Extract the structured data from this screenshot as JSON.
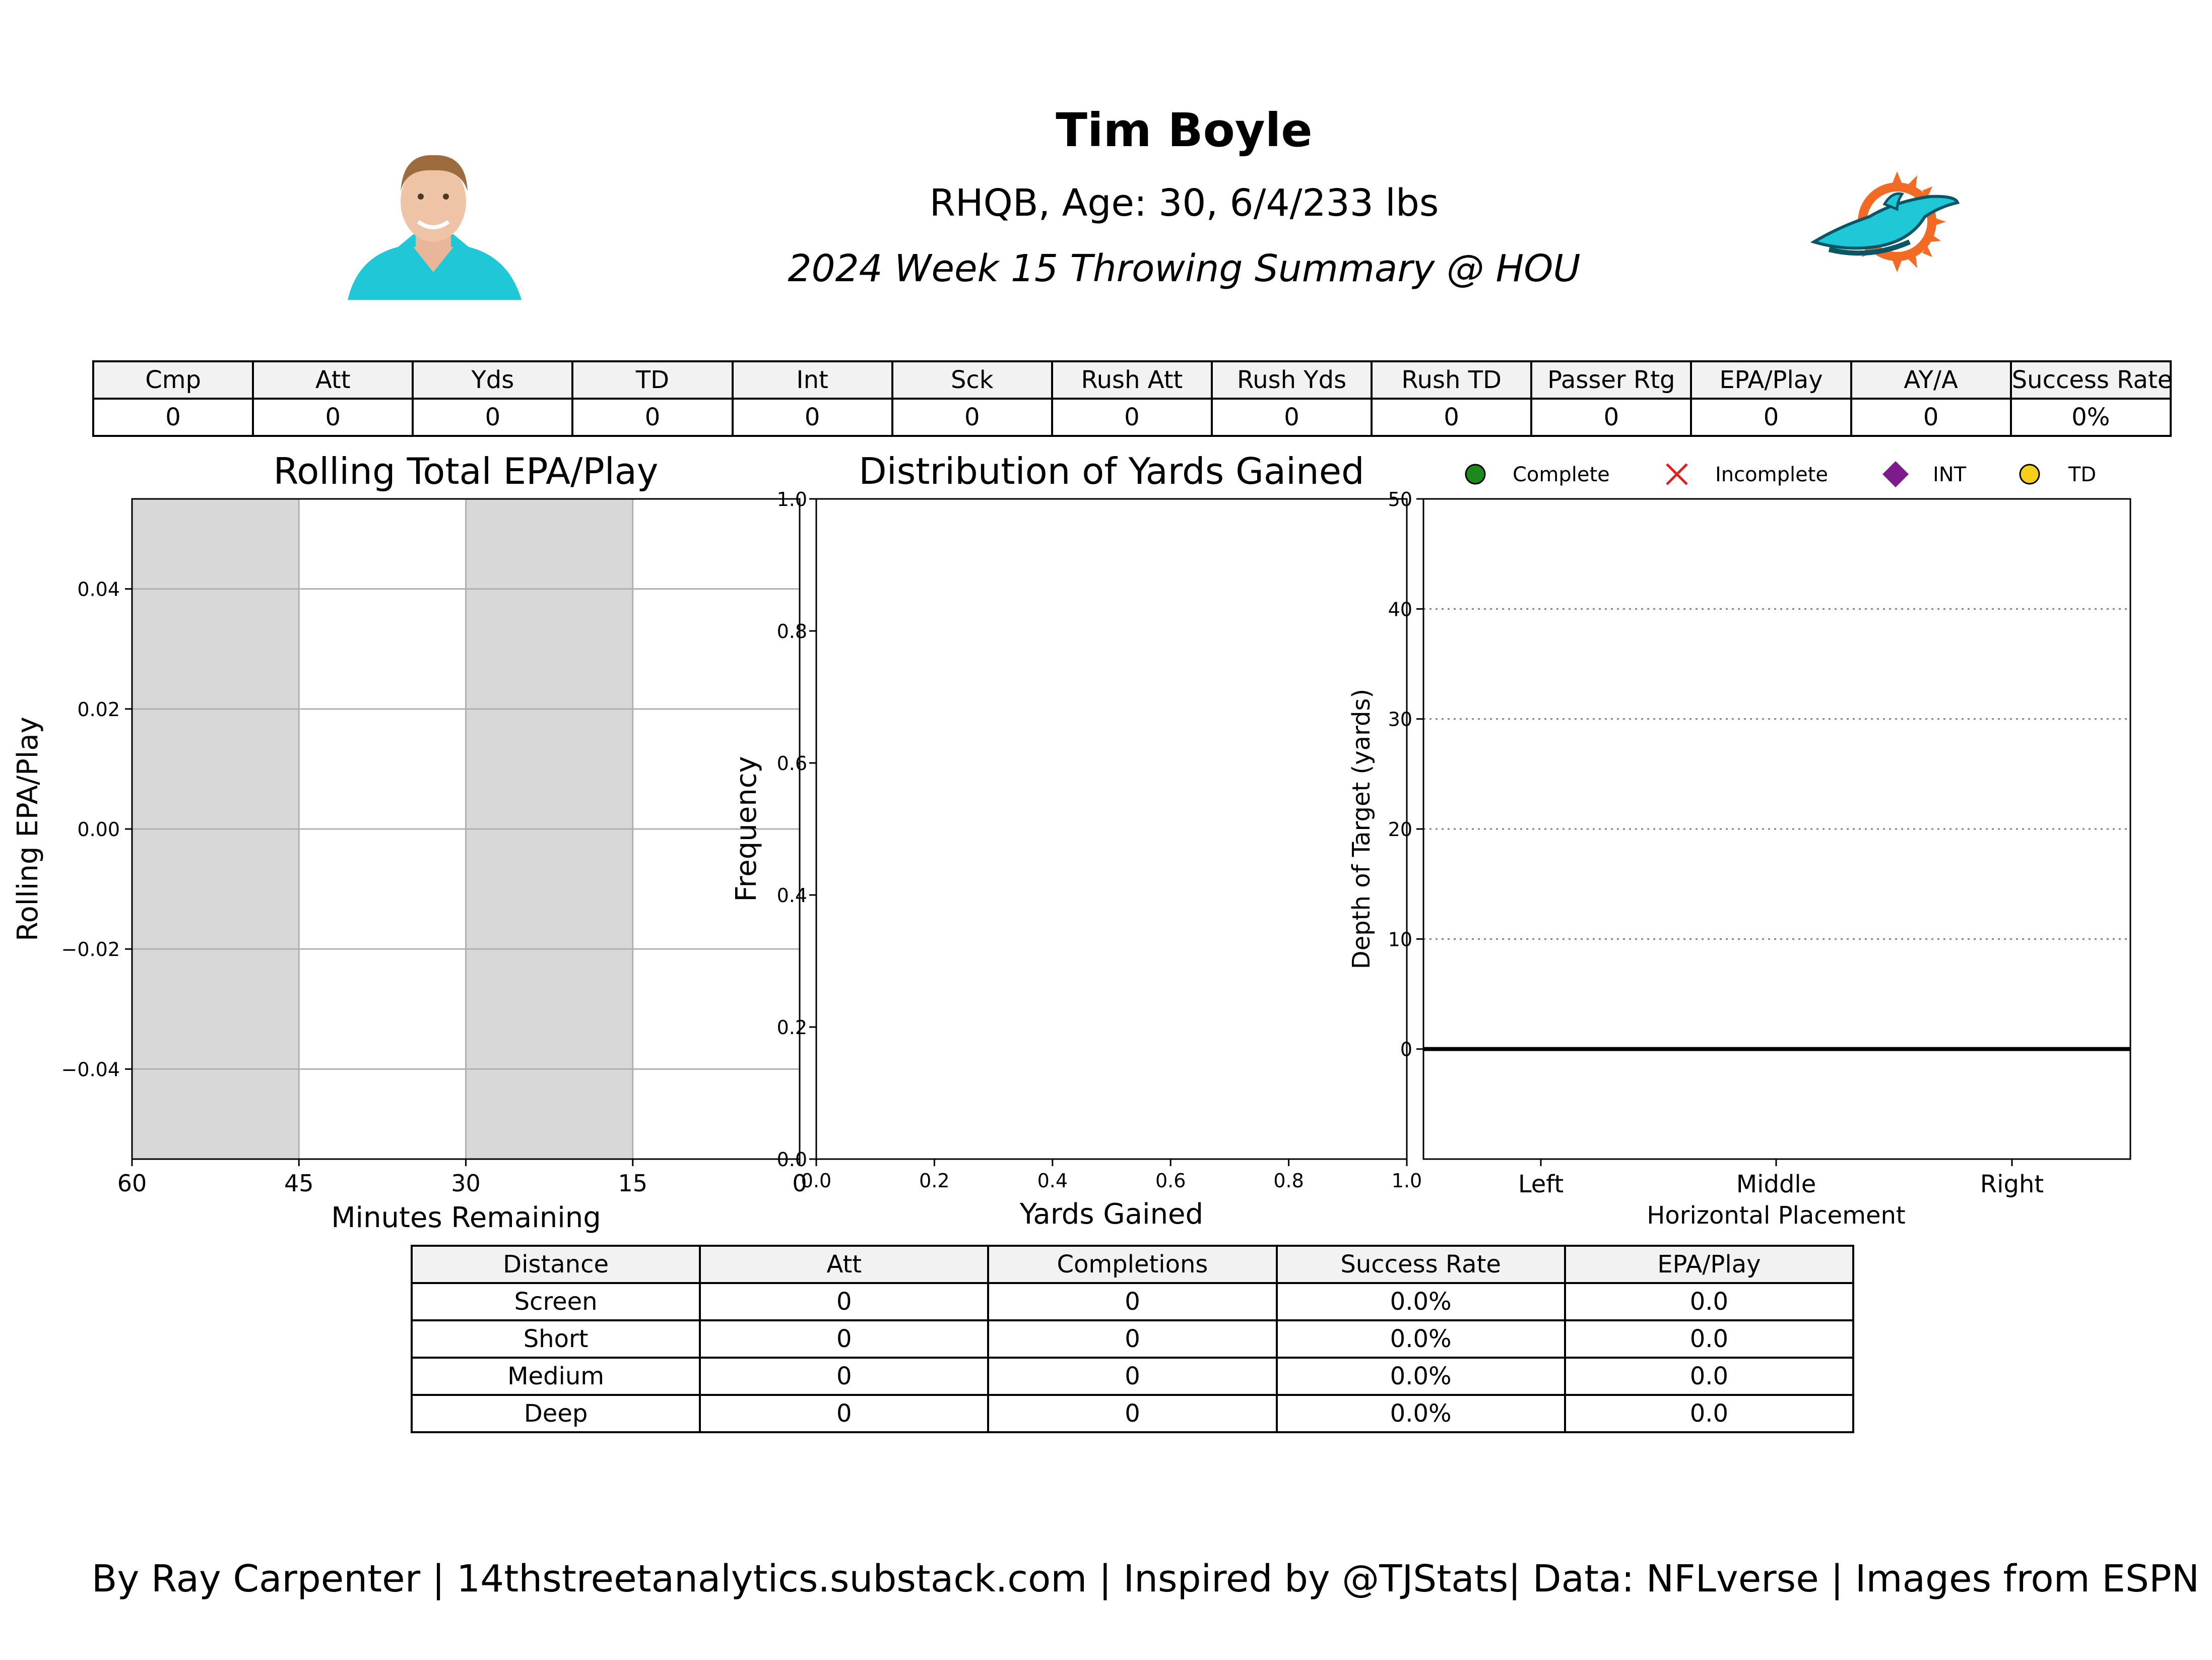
{
  "header": {
    "player_name": "Tim Boyle",
    "bio": "RHQB, Age: 30, 6/4/233 lbs",
    "summary_title": "2024 Week 15 Throwing Summary @ HOU"
  },
  "colors": {
    "team_aqua": "#1ec8d6",
    "team_orange": "#f26a24",
    "team_navy": "#0a5566",
    "quarter_shade": "#d8d8d8",
    "complete": "#1a8a1a",
    "incomplete": "#e02020",
    "int": "#7d1a8c",
    "td": "#f5cf1a"
  },
  "icons": {
    "player_headshot": "player-headshot-image",
    "team_logo": "dolphin-team-logo"
  },
  "stat_table": {
    "headers": [
      "Cmp",
      "Att",
      "Yds",
      "TD",
      "Int",
      "Sck",
      "Rush Att",
      "Rush Yds",
      "Rush TD",
      "Passer Rtg",
      "EPA/Play",
      "AY/A",
      "Success Rate"
    ],
    "values": [
      "0",
      "0",
      "0",
      "0",
      "0",
      "0",
      "0",
      "0",
      "0",
      "0",
      "0",
      "0",
      "0%"
    ]
  },
  "chart_data": [
    {
      "type": "line",
      "title": "Rolling Total EPA/Play",
      "xlabel": "Minutes Remaining",
      "ylabel": "Rolling EPA/Play",
      "xlim": [
        60,
        0
      ],
      "ylim": [
        -0.055,
        0.055
      ],
      "x_ticks": [
        "60",
        "45",
        "30",
        "15",
        "0"
      ],
      "y_ticks": [
        "0.04",
        "0.02",
        "0.00",
        "−0.02",
        "−0.04"
      ],
      "y_tick_values": [
        0.04,
        0.02,
        0.0,
        -0.02,
        -0.04
      ],
      "x_tick_values": [
        60,
        45,
        30,
        15,
        0
      ],
      "shaded_quarters": [
        [
          60,
          45
        ],
        [
          30,
          15
        ]
      ],
      "grid": true,
      "series": []
    },
    {
      "type": "bar",
      "title": "Distribution of Yards Gained",
      "xlabel": "Yards Gained",
      "ylabel": "Frequency",
      "xlim": [
        0,
        1
      ],
      "ylim": [
        0,
        1
      ],
      "x_ticks": [
        "0.0",
        "0.2",
        "0.4",
        "0.6",
        "0.8",
        "1.0"
      ],
      "y_ticks": [
        "0.0",
        "0.2",
        "0.4",
        "0.6",
        "0.8",
        "1.0"
      ],
      "tick_values": [
        0,
        0.2,
        0.4,
        0.6,
        0.8,
        1.0
      ],
      "grid": false,
      "values": []
    },
    {
      "type": "scatter",
      "title": "",
      "xlabel": "Horizontal Placement",
      "ylabel": "Depth of Target (yards)",
      "categories": [
        "Left",
        "Middle",
        "Right"
      ],
      "ylim": [
        -10,
        50
      ],
      "y_ticks": [
        "50",
        "40",
        "30",
        "20",
        "10",
        "0"
      ],
      "y_tick_values": [
        50,
        40,
        30,
        20,
        10,
        0
      ],
      "grid": "dotted horizontal",
      "legend_position": "top",
      "legend": [
        "Complete",
        "Incomplete",
        "INT",
        "TD"
      ],
      "points": []
    }
  ],
  "dist_table": {
    "headers": [
      "Distance",
      "Att",
      "Completions",
      "Success Rate",
      "EPA/Play"
    ],
    "rows": [
      [
        "Screen",
        "0",
        "0",
        "0.0%",
        "0.0"
      ],
      [
        "Short",
        "0",
        "0",
        "0.0%",
        "0.0"
      ],
      [
        "Medium",
        "0",
        "0",
        "0.0%",
        "0.0"
      ],
      [
        "Deep",
        "0",
        "0",
        "0.0%",
        "0.0"
      ]
    ]
  },
  "footer": {
    "credit": "By Ray Carpenter | 14thstreetanalytics.substack.com | Inspired by @TJStats| Data: NFLverse | Images from ESPN"
  }
}
